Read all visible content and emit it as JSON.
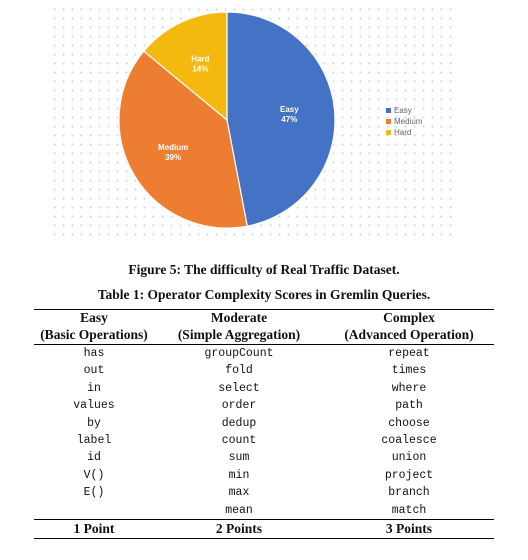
{
  "chart_data": {
    "type": "pie",
    "title": "",
    "slices": [
      {
        "label": "Easy",
        "value": 47,
        "display": "47%",
        "color": "#4472c4"
      },
      {
        "label": "Medium",
        "value": 39,
        "display": "39%",
        "color": "#ed7d31"
      },
      {
        "label": "Hard",
        "value": 14,
        "display": "14%",
        "color": "#f4b90f"
      }
    ],
    "legend": {
      "placement": "right",
      "entries": [
        "Easy",
        "Medium",
        "Hard"
      ]
    },
    "background": "dotted grid"
  },
  "figure_caption": "Figure 5: The difficulty of Real Traffic Dataset.",
  "table": {
    "caption": "Table 1: Operator Complexity Scores in Gremlin Queries.",
    "headers": [
      {
        "title": "Easy",
        "subtitle": "(Basic Operations)"
      },
      {
        "title": "Moderate",
        "subtitle": "(Simple Aggregation)"
      },
      {
        "title": "Complex",
        "subtitle": "(Advanced Operation)"
      }
    ],
    "rows": [
      [
        "has",
        "groupCount",
        "repeat"
      ],
      [
        "out",
        "fold",
        "times"
      ],
      [
        "in",
        "select",
        "where"
      ],
      [
        "values",
        "order",
        "path"
      ],
      [
        "by",
        "dedup",
        "choose"
      ],
      [
        "label",
        "count",
        "coalesce"
      ],
      [
        "id",
        "sum",
        "union"
      ],
      [
        "V()",
        "min",
        "project"
      ],
      [
        "E()",
        "max",
        "branch"
      ],
      [
        "",
        "mean",
        "match"
      ]
    ],
    "footer": [
      "1 Point",
      "2 Points",
      "3 Points"
    ]
  }
}
